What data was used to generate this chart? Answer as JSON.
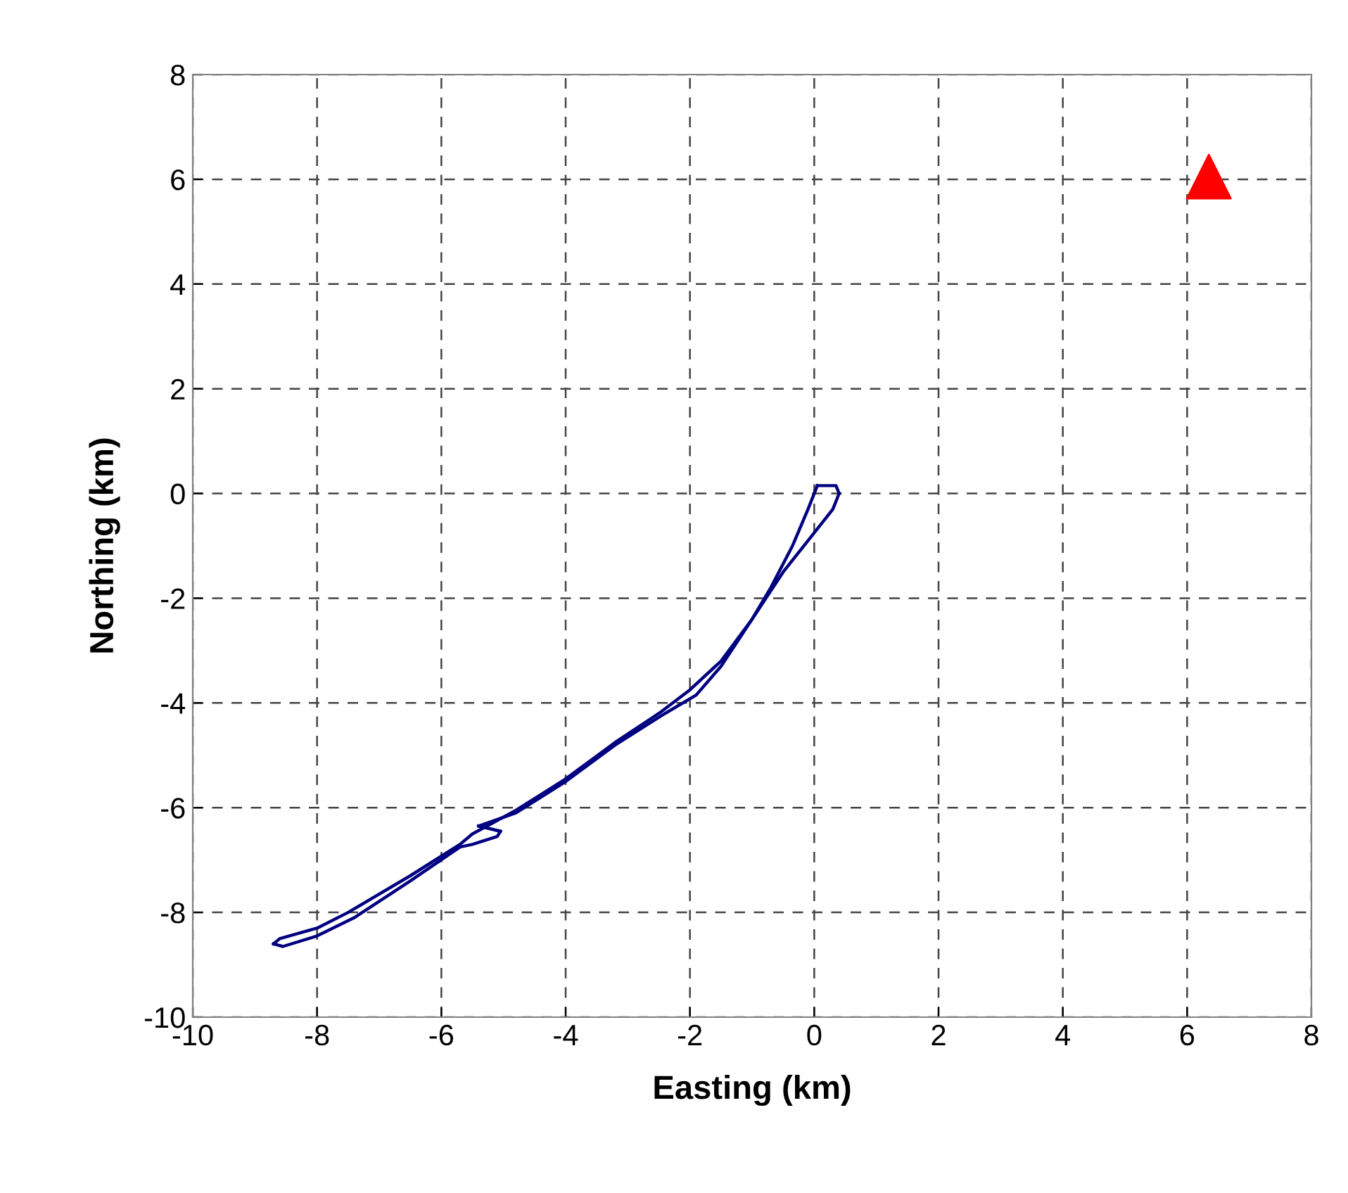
{
  "chart_data": {
    "type": "line",
    "xlabel": "Easting (km)",
    "ylabel": "Northing (km)",
    "xlim": [
      -10,
      8
    ],
    "ylim": [
      -10,
      8
    ],
    "xticks": [
      -10,
      -8,
      -6,
      -4,
      -2,
      0,
      2,
      4,
      6,
      8
    ],
    "yticks": [
      -10,
      -8,
      -6,
      -4,
      -2,
      0,
      2,
      4,
      6,
      8
    ],
    "grid": true,
    "legend": false,
    "series": [
      {
        "color": "#000080",
        "marker": "none",
        "x": [
          0.05,
          -0.1,
          -0.35,
          -0.7,
          -1.0,
          -1.5,
          -2.0,
          -2.5,
          -3.2,
          -4.0,
          -4.8,
          -5.5,
          -5.7,
          -6.5,
          -7.5,
          -8.0,
          -8.6,
          -8.7
        ],
        "values": [
          0.15,
          -0.3,
          -1.0,
          -1.8,
          -2.4,
          -3.2,
          -3.75,
          -4.2,
          -4.75,
          -5.45,
          -6.05,
          -6.5,
          -6.7,
          -7.3,
          -8.0,
          -8.3,
          -8.5,
          -8.6
        ]
      },
      {
        "color": "#000080",
        "marker": "none",
        "x": [
          -8.7,
          -8.55,
          -8.0,
          -7.4,
          -6.5,
          -5.7,
          -5.5,
          -5.1,
          -5.05
        ],
        "values": [
          -8.6,
          -8.65,
          -8.45,
          -8.1,
          -7.4,
          -6.75,
          -6.7,
          -6.55,
          -6.45
        ]
      },
      {
        "color": "#000080",
        "marker": "none",
        "x": [
          -5.05,
          -5.4
        ],
        "values": [
          -6.45,
          -6.35
        ]
      },
      {
        "color": "#000080",
        "marker": "none",
        "x": [
          -5.4,
          -4.8,
          -4.0,
          -3.2,
          -2.4,
          -1.9,
          -1.5,
          -1.0,
          -0.5,
          0.0,
          0.3,
          0.4
        ],
        "values": [
          -6.35,
          -6.1,
          -5.5,
          -4.8,
          -4.2,
          -3.85,
          -3.3,
          -2.4,
          -1.5,
          -0.75,
          -0.3,
          0.0
        ]
      },
      {
        "color": "#000080",
        "marker": "none",
        "x": [
          0.4,
          0.35,
          0.1,
          0.05
        ],
        "values": [
          0.0,
          0.15,
          0.15,
          0.15
        ]
      },
      {
        "type": "scatter",
        "color": "#ff0000",
        "marker": "triangle",
        "x": [
          6.35
        ],
        "values": [
          6.05
        ]
      }
    ]
  }
}
